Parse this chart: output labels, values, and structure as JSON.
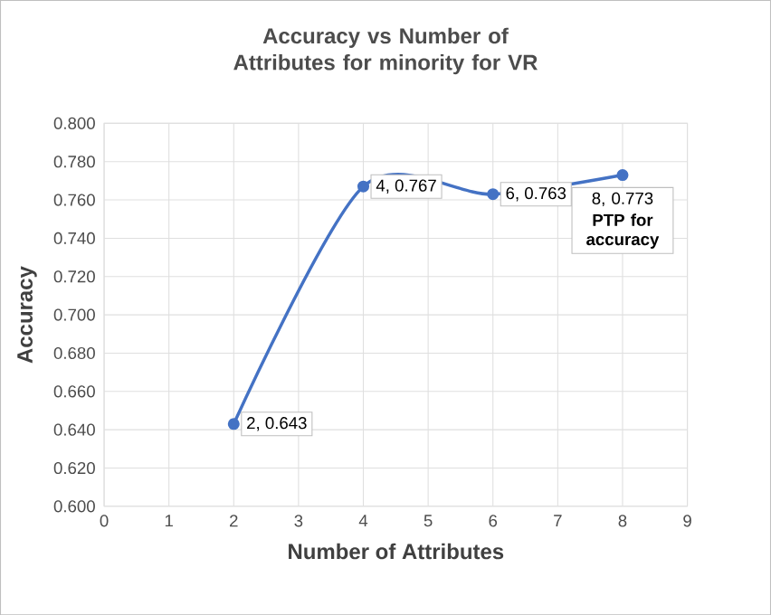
{
  "chart_data": {
    "type": "line",
    "title": "Accuracy vs Number of Attributes for minority for VR",
    "xlabel": "Number of Attributes",
    "ylabel": "Accuracy",
    "x": [
      2,
      4,
      6,
      8
    ],
    "values": [
      0.643,
      0.767,
      0.763,
      0.773
    ],
    "color": "#4472c4",
    "marker": "circle",
    "line_style": "solid",
    "grid": true,
    "value_labels": [
      "2, 0.643",
      "4, 0.767",
      "6, 0.763",
      "8, 0.773"
    ],
    "annotations": [
      "PTP for accuracy"
    ],
    "xlim": [
      0,
      9
    ],
    "xticks": [
      0,
      1,
      2,
      3,
      4,
      5,
      6,
      7,
      8,
      9
    ],
    "ylim": [
      0.6,
      0.8
    ],
    "yticks": [
      {
        "value": 0.6,
        "label": "0.600"
      },
      {
        "value": 0.62,
        "label": "0.620"
      },
      {
        "value": 0.64,
        "label": "0.640"
      },
      {
        "value": 0.66,
        "label": "0.660"
      },
      {
        "value": 0.68,
        "label": "0.680"
      },
      {
        "value": 0.7,
        "label": "0.700"
      },
      {
        "value": 0.72,
        "label": "0.720"
      },
      {
        "value": 0.74,
        "label": "0.740"
      },
      {
        "value": 0.76,
        "label": "0.760"
      },
      {
        "value": 0.78,
        "label": "0.780"
      },
      {
        "value": 0.8,
        "label": "0.800"
      }
    ]
  }
}
